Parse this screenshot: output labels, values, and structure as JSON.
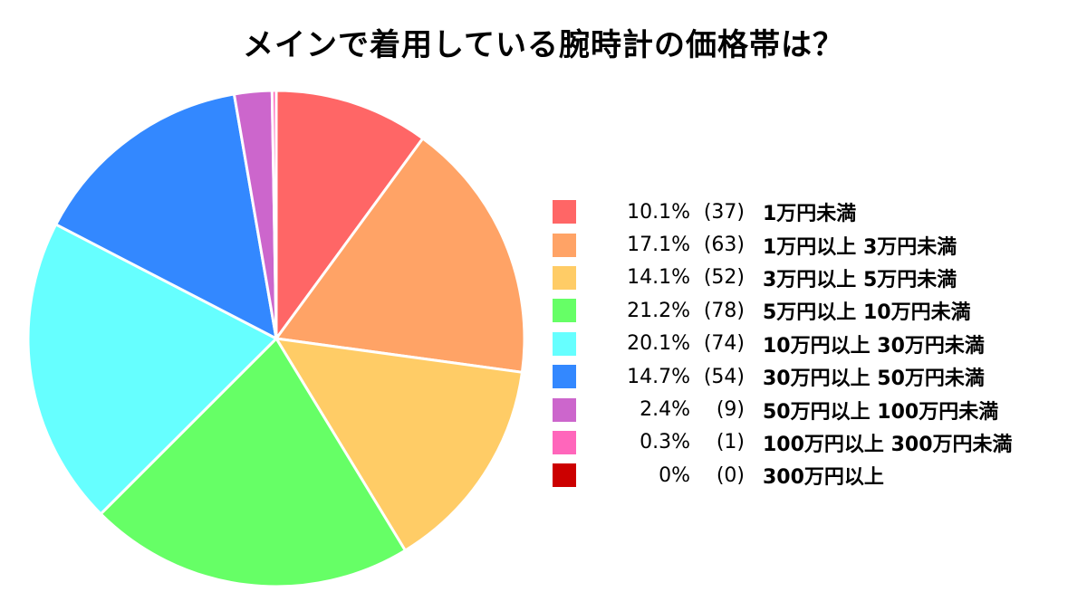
{
  "title": "メインで着用している腕時計の価格帯は？",
  "chart_data": {
    "type": "pie",
    "title": "メインで着用している腕時計の価格帯は？",
    "legend_position": "right",
    "slices": [
      {
        "label": "1万円未満",
        "percent_text": "10.1%",
        "count_text": "(37)",
        "value": 37,
        "color": "#ff6666"
      },
      {
        "label": "1万円以上 3万円未満",
        "percent_text": "17.1%",
        "count_text": "(63)",
        "value": 63,
        "color": "#ffa366"
      },
      {
        "label": "3万円以上 5万円未満",
        "percent_text": "14.1%",
        "count_text": "(52)",
        "value": 52,
        "color": "#ffcc66"
      },
      {
        "label": "5万円以上 10万円未満",
        "percent_text": "21.2%",
        "count_text": "(78)",
        "value": 78,
        "color": "#66ff66"
      },
      {
        "label": "10万円以上 30万円未満",
        "percent_text": "20.1%",
        "count_text": "(74)",
        "value": 74,
        "color": "#66ffff"
      },
      {
        "label": "30万円以上 50万円未満",
        "percent_text": "14.7%",
        "count_text": "(54)",
        "value": 54,
        "color": "#3388ff"
      },
      {
        "label": "50万円以上 100万円未満",
        "percent_text": "2.4%",
        "count_text": "(9)",
        "value": 9,
        "color": "#cc66cc"
      },
      {
        "label": "100万円以上 300万円未満",
        "percent_text": "0.3%",
        "count_text": "(1)",
        "value": 1,
        "color": "#ff66bb"
      },
      {
        "label": "300万円以上",
        "percent_text": "0%",
        "count_text": "(0)",
        "value": 0,
        "color": "#cc0000"
      }
    ]
  }
}
